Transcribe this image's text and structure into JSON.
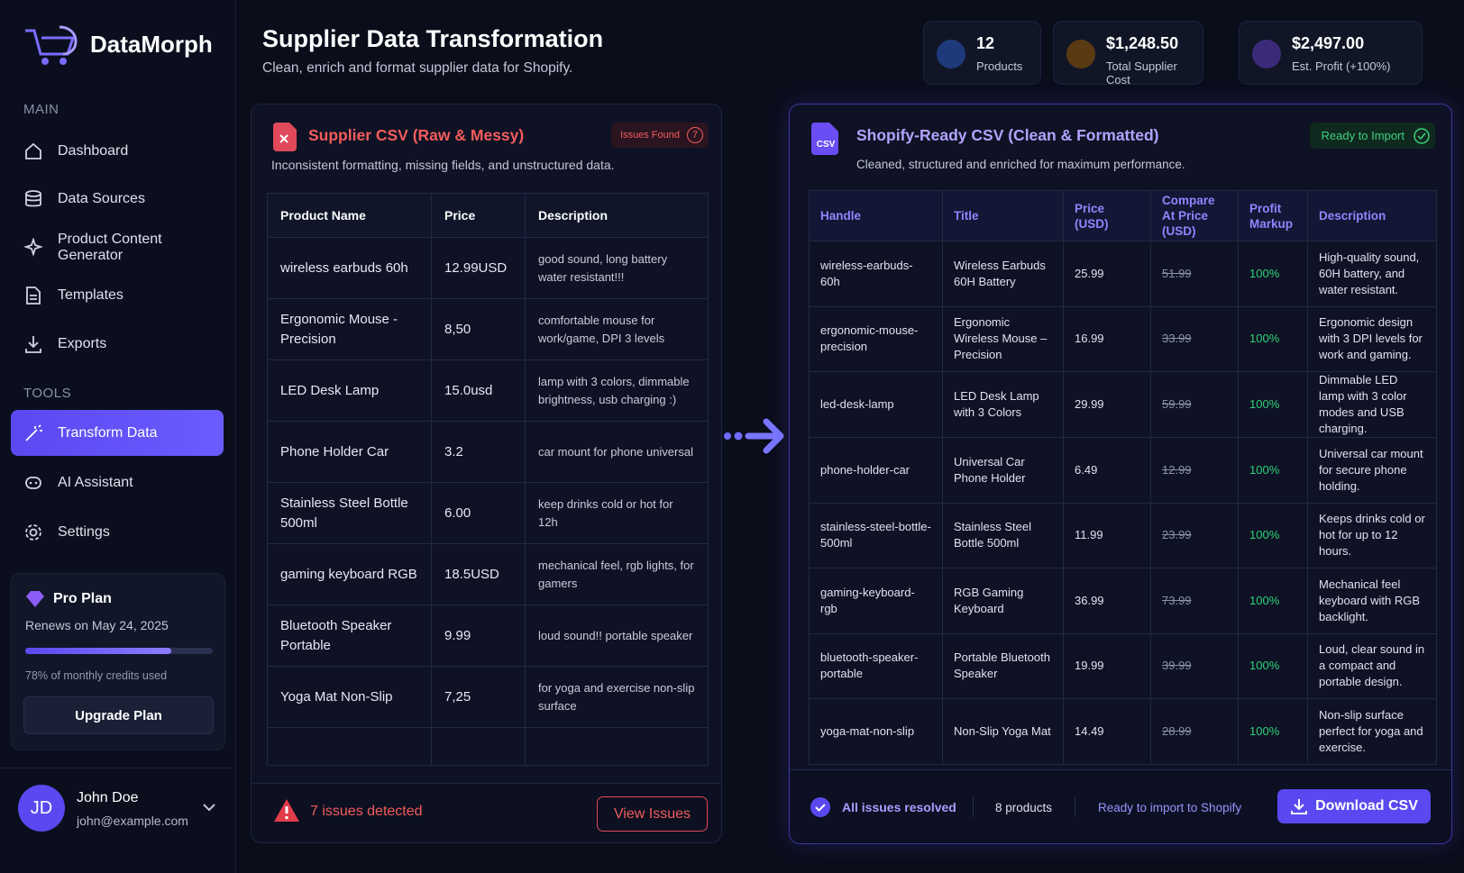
{
  "brand": "DataMorph",
  "sidebar": {
    "main_label": "MAIN",
    "main_items": [
      "Dashboard",
      "Data Sources",
      "Product Content Generator",
      "Templates",
      "Exports"
    ],
    "tools_label": "TOOLS",
    "tools_items": [
      "Transform Data",
      "AI Assistant",
      "Settings"
    ]
  },
  "plan": {
    "name": "Pro Plan",
    "renews": "Renews on May 24, 2025",
    "usage_percent": 78,
    "usage": "78% of monthly credits used",
    "button": "Upgrade Plan"
  },
  "user": {
    "initials": "JD",
    "name": "John Doe",
    "email": "john@example.com"
  },
  "header": {
    "title": "Supplier Data Transformation",
    "subtitle": "Clean, enrich and format supplier data for Shopify."
  },
  "stats": [
    {
      "value": "12",
      "label": "Products"
    },
    {
      "value": "$1,248.50",
      "label": "Total Supplier Cost"
    },
    {
      "value": "$2,497.00",
      "label": "Est. Profit (+100%)"
    }
  ],
  "raw_panel": {
    "title": "Supplier CSV (Raw & Messy)",
    "badge": "Issues Found",
    "badge_count": "7",
    "subtitle": "Inconsistent formatting, missing fields, and unstructured data.",
    "columns": [
      "Product Name",
      "Price",
      "Description"
    ],
    "rows": [
      [
        "wireless earbuds 60h",
        "12.99USD",
        "good sound, long battery water resistant!!!"
      ],
      [
        "Ergonomic Mouse - Precision",
        "8,50",
        "comfortable mouse for work/game,  DPI 3 levels"
      ],
      [
        "LED Desk Lamp",
        "15.0usd",
        "lamp with 3 colors, dimmable brightness, usb charging :)"
      ],
      [
        "Phone Holder Car",
        "3.2",
        "car mount for phone universal"
      ],
      [
        "Stainless Steel Bottle 500ml",
        "6.00",
        "keep drinks cold or hot for 12h"
      ],
      [
        "gaming keyboard RGB",
        "18.5USD",
        "mechanical feel, rgb lights, for gamers"
      ],
      [
        "Bluetooth Speaker Portable",
        "9.99",
        "loud sound!! portable speaker"
      ],
      [
        "Yoga Mat Non-Slip",
        "7,25",
        "for yoga and exercise non-slip surface"
      ]
    ],
    "footer": "7 issues detected",
    "button": "View Issues"
  },
  "clean_panel": {
    "icon": "CSV",
    "title": "Shopify-Ready CSV (Clean & Formatted)",
    "badge": "Ready to Import",
    "subtitle": "Cleaned, structured and enriched for maximum performance.",
    "columns": [
      "Handle",
      "Title",
      "Price (USD)",
      "Compare At Price (USD)",
      "Profit Markup",
      "Description"
    ],
    "rows": [
      [
        "wireless-earbuds-60h",
        "Wireless Earbuds 60H Battery",
        "25.99",
        "51.99",
        "100%",
        "High-quality sound, 60H battery, and water resistant."
      ],
      [
        "ergonomic-mouse-precision",
        "Ergonomic Wireless Mouse – Precision",
        "16.99",
        "33.99",
        "100%",
        "Ergonomic design with 3 DPI levels for work and gaming."
      ],
      [
        "led-desk-lamp",
        "LED Desk Lamp with 3 Colors",
        "29.99",
        "59.99",
        "100%",
        "Dimmable LED lamp with 3 color modes and USB charging."
      ],
      [
        "phone-holder-car",
        "Universal Car Phone Holder",
        "6.49",
        "12.99",
        "100%",
        "Universal car mount for secure phone holding."
      ],
      [
        "stainless-steel-bottle-500ml",
        "Stainless Steel Bottle 500ml",
        "11.99",
        "23.99",
        "100%",
        "Keeps drinks cold or hot for up to 12 hours."
      ],
      [
        "gaming-keyboard-rgb",
        "RGB Gaming Keyboard",
        "36.99",
        "73.99",
        "100%",
        "Mechanical feel keyboard with RGB backlight."
      ],
      [
        "bluetooth-speaker-portable",
        "Portable Bluetooth Speaker",
        "19.99",
        "39.99",
        "100%",
        "Loud, clear sound in a compact and portable design."
      ],
      [
        "yoga-mat-non-slip",
        "Non-Slip Yoga Mat",
        "14.49",
        "28.99",
        "100%",
        "Non-slip surface perfect for yoga and exercise."
      ]
    ],
    "footer": {
      "resolved": "All issues resolved",
      "count": "8 products",
      "ready": "Ready to import to Shopify",
      "button": "Download CSV"
    }
  }
}
